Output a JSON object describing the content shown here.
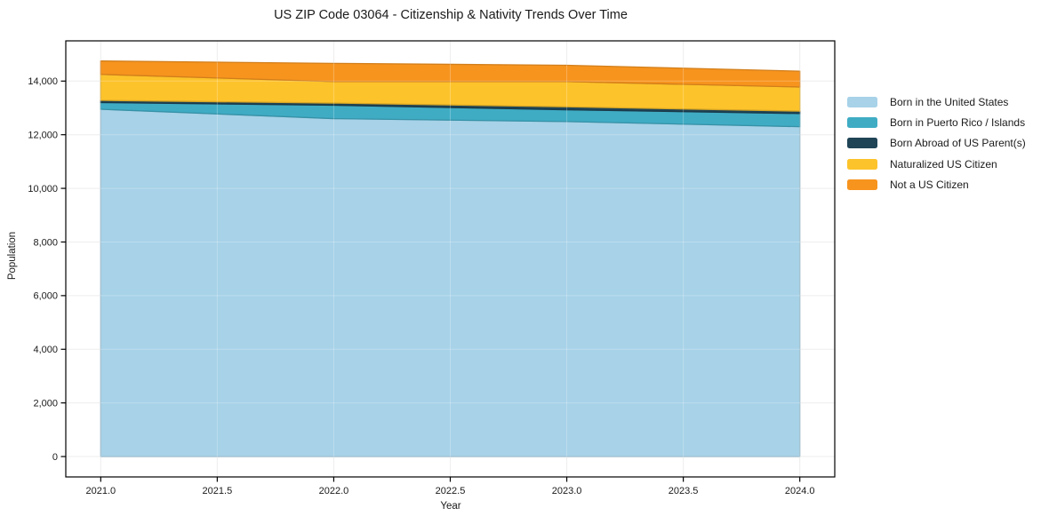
{
  "chart": {
    "title": "US ZIP Code 03064 - Citizenship & Nativity Trends Over Time",
    "xlabel": "Year",
    "ylabel": "Population"
  },
  "chart_data": {
    "type": "area",
    "stacked": true,
    "title": "US ZIP Code 03064 - Citizenship & Nativity Trends Over Time",
    "xlabel": "Year",
    "ylabel": "Population",
    "x": [
      2021,
      2022,
      2023,
      2024
    ],
    "series": [
      {
        "name": "Born in the United States",
        "color": "#A7D2E8",
        "values": [
          12950,
          12600,
          12490,
          12300
        ]
      },
      {
        "name": "Born in Puerto Rico / Islands",
        "color": "#3FACC4",
        "values": [
          250,
          500,
          440,
          490
        ]
      },
      {
        "name": "Born Abroad of US Parent(s)",
        "color": "#1F4456",
        "values": [
          80,
          80,
          110,
          90
        ]
      },
      {
        "name": "Naturalized US Citizen",
        "color": "#FDC32B",
        "values": [
          970,
          800,
          940,
          900
        ]
      },
      {
        "name": "Not a US Citizen",
        "color": "#F7941E",
        "values": [
          500,
          680,
          610,
          590
        ]
      }
    ],
    "stack_totals": [
      14750,
      14660,
      14590,
      14370
    ],
    "xlim": [
      2020.85,
      2024.15
    ],
    "ylim": [
      -760,
      15500
    ],
    "x_ticks": [
      2021.0,
      2021.5,
      2022.0,
      2022.5,
      2023.0,
      2023.5,
      2024.0
    ],
    "y_ticks": [
      0,
      2000,
      4000,
      6000,
      8000,
      10000,
      12000,
      14000
    ],
    "grid": true,
    "grid_color": "#e9e9e9",
    "spine_color": "#000000",
    "legend_position": "right"
  }
}
